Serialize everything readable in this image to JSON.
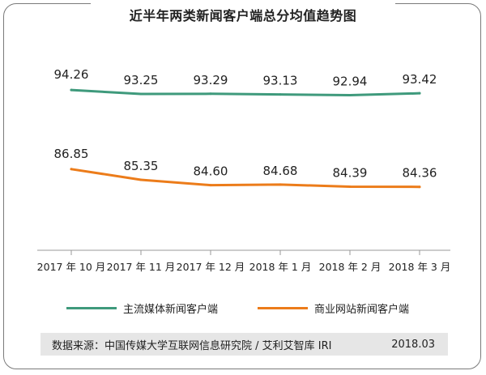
{
  "header": {
    "title": "近半年两类新闻客户端总分均值趋势图"
  },
  "chart_data": {
    "type": "line",
    "title": "近半年两类新闻客户端总分均值趋势图",
    "categories": [
      "2017 年 10 月",
      "2017 年 11 月",
      "2017 年 12 月",
      "2018 年 1 月",
      "2018 年 2 月",
      "2018 年 3 月"
    ],
    "series": [
      {
        "name": "主流媒体新闻客户端",
        "color": "#3f9a7c",
        "values": [
          94.26,
          93.25,
          93.29,
          93.13,
          92.94,
          93.42
        ],
        "labels": [
          "94.26",
          "93.25",
          "93.29",
          "93.13",
          "92.94",
          "93.42"
        ]
      },
      {
        "name": "商业网站新闻客户端",
        "color": "#ec7c1a",
        "values": [
          86.85,
          85.35,
          84.6,
          84.68,
          84.39,
          84.36
        ],
        "labels": [
          "86.85",
          "85.35",
          "84.60",
          "84.68",
          "84.39",
          "84.36"
        ]
      }
    ],
    "xlabel": "",
    "ylabel": "",
    "y_axis_visible": false,
    "grid": false,
    "legend_position": "bottom"
  },
  "legend": {
    "items": [
      {
        "label": "主流媒体新闻客户端",
        "color": "#3f9a7c"
      },
      {
        "label": "商业网站新闻客户端",
        "color": "#ec7c1a"
      }
    ]
  },
  "footer": {
    "source": "数据来源：中国传媒大学互联网信息研究院 / 艾利艾智库 IRI",
    "date": "2018.03"
  }
}
